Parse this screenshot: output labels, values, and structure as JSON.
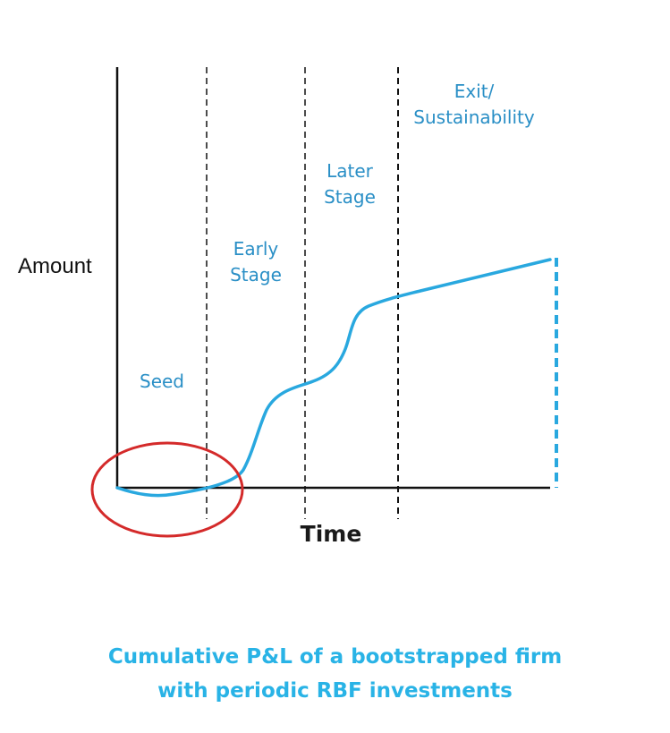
{
  "diagram": {
    "y_axis_label": "Amount",
    "x_axis_label": "Time",
    "stages": [
      {
        "id": "seed",
        "lines": [
          "Seed"
        ]
      },
      {
        "id": "early",
        "lines": [
          "Early",
          "Stage"
        ]
      },
      {
        "id": "later",
        "lines": [
          "Later",
          "Stage"
        ]
      },
      {
        "id": "exit",
        "lines": [
          "Exit/",
          "Sustainability"
        ]
      }
    ],
    "caption": [
      "Cumulative P&L of a bootstrapped firm",
      "with periodic RBF investments"
    ],
    "colors": {
      "curve": "#29a8df",
      "stage_text": "#2a8fc6",
      "highlight_ellipse": "#d42a2a",
      "axis": "#111111",
      "divider": "#111111",
      "caption": "#29b3e6"
    }
  }
}
